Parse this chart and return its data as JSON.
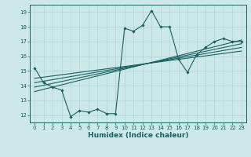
{
  "title": "",
  "xlabel": "Humidex (Indice chaleur)",
  "ylabel": "",
  "xlim": [
    -0.5,
    23.5
  ],
  "ylim": [
    11.5,
    19.5
  ],
  "xticks": [
    0,
    1,
    2,
    3,
    4,
    5,
    6,
    7,
    8,
    9,
    10,
    11,
    12,
    13,
    14,
    15,
    16,
    17,
    18,
    19,
    20,
    21,
    22,
    23
  ],
  "yticks": [
    12,
    13,
    14,
    15,
    16,
    17,
    18,
    19
  ],
  "bg_color": "#cce8e8",
  "grid_color": "#b0d4d4",
  "line_color": "#1a6060",
  "line1": [
    15.2,
    14.2,
    13.9,
    13.7,
    11.9,
    12.3,
    12.2,
    12.4,
    12.1,
    12.1,
    17.9,
    17.7,
    18.1,
    19.1,
    18.0,
    18.0,
    15.8,
    14.9,
    16.1,
    16.6,
    17.0,
    17.2,
    17.0,
    17.0
  ],
  "trend_lines": [
    {
      "x": [
        0,
        23
      ],
      "y": [
        13.6,
        17.1
      ]
    },
    {
      "x": [
        0,
        23
      ],
      "y": [
        13.9,
        16.85
      ]
    },
    {
      "x": [
        0,
        23
      ],
      "y": [
        14.2,
        16.6
      ]
    },
    {
      "x": [
        0,
        23
      ],
      "y": [
        14.5,
        16.35
      ]
    }
  ]
}
